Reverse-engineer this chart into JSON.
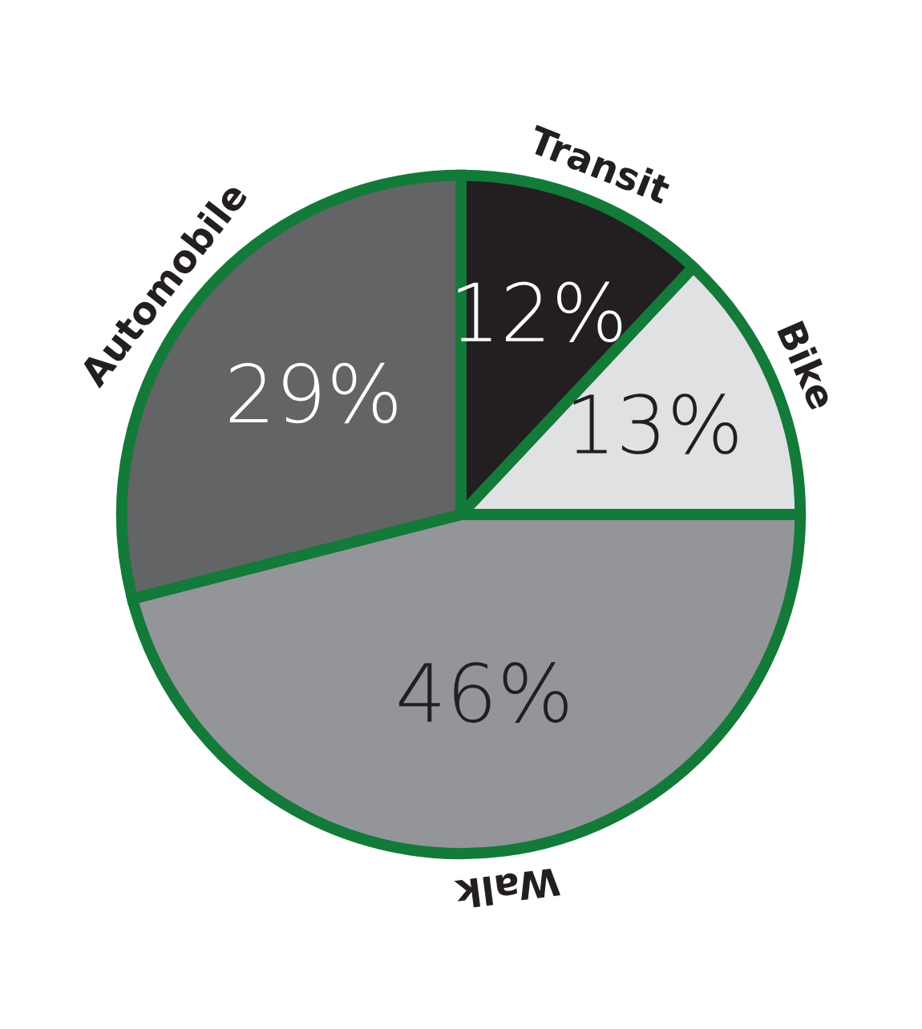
{
  "chart_data": {
    "type": "pie",
    "categories": [
      "Transit",
      "Bike",
      "Walk",
      "Automobile"
    ],
    "values": [
      12,
      13,
      46,
      29
    ],
    "colors": [
      "#231f20",
      "#e0e1e3",
      "#939598",
      "#636466"
    ],
    "value_labels": [
      "12%",
      "13%",
      "46%",
      "29%"
    ],
    "legend": false
  }
}
